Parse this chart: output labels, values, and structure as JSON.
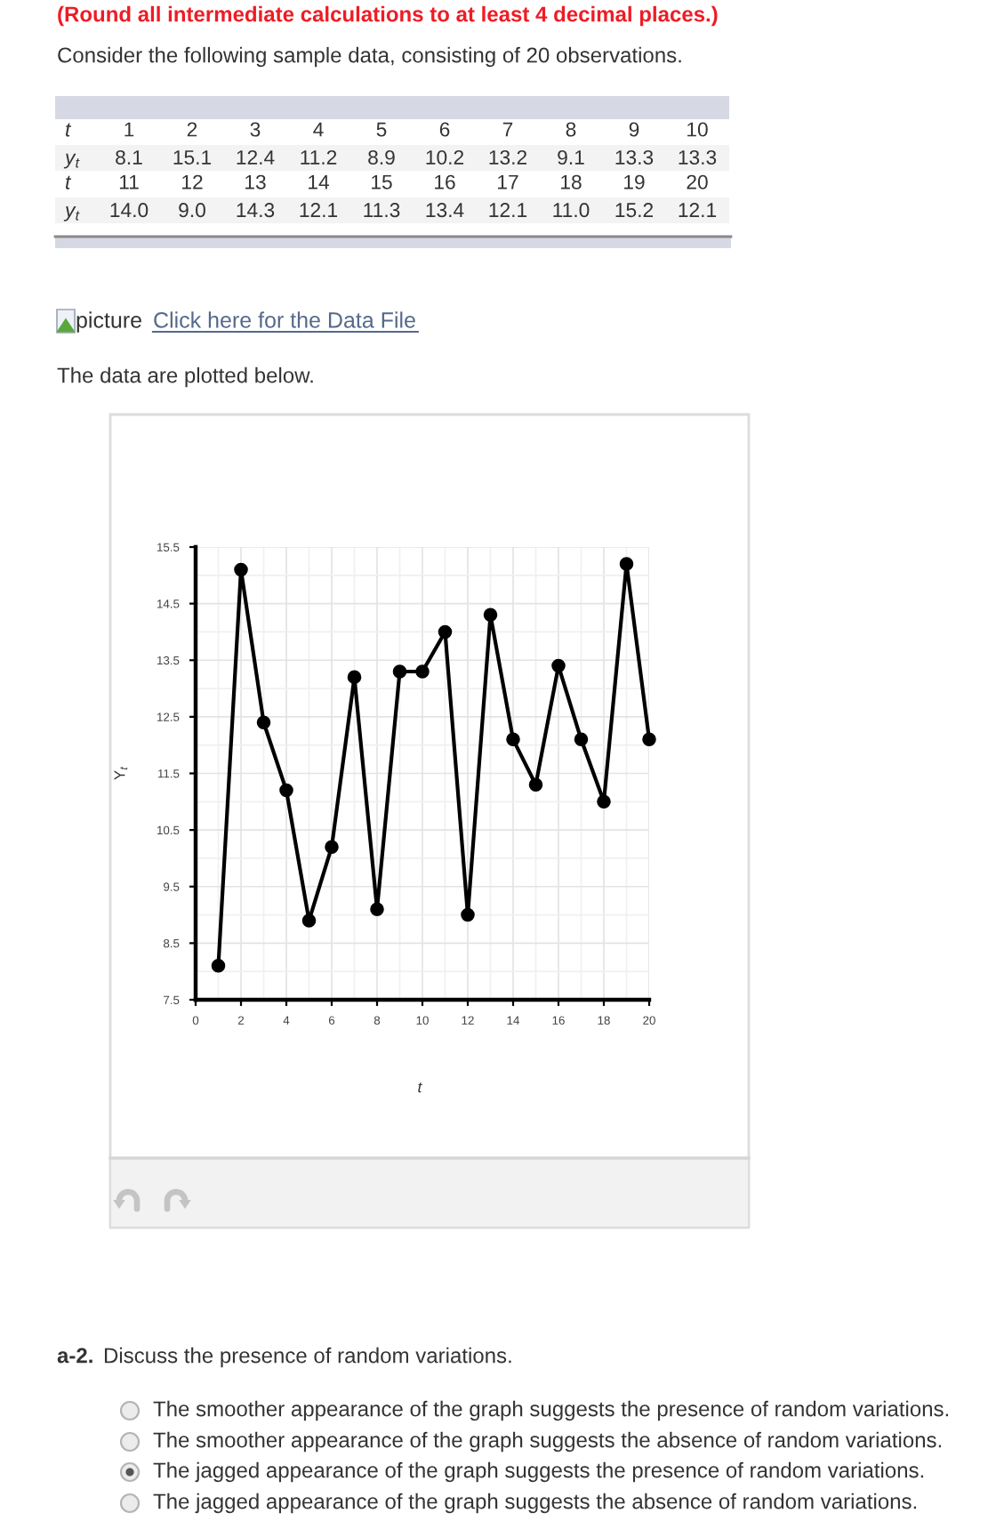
{
  "chart_data": {
    "type": "line",
    "xlabel": "t",
    "ylabel": "Y$_{t}$",
    "x": [
      1,
      2,
      3,
      4,
      5,
      6,
      7,
      8,
      9,
      10,
      11,
      12,
      13,
      14,
      15,
      16,
      17,
      18,
      19,
      20
    ],
    "series": [
      {
        "color": "#000000",
        "values": [
          8.1,
          15.1,
          12.4,
          11.2,
          8.9,
          10.2,
          13.2,
          9.1,
          13.3,
          13.3,
          14.0,
          9.0,
          14.3,
          12.1,
          11.3,
          13.4,
          12.1,
          11.0,
          15.2,
          12.1
        ]
      }
    ],
    "xlim": [
      0,
      20
    ],
    "ylim": [
      7.5,
      15.5
    ],
    "xticks": [
      0,
      2,
      4,
      6,
      8,
      10,
      12,
      14,
      16,
      18,
      20
    ],
    "yticks": [
      7.5,
      8.5,
      9.5,
      10.5,
      11.5,
      12.5,
      13.5,
      14.5,
      15.5
    ],
    "grid": true,
    "marker": "circle",
    "line_style": "solid",
    "annotations": [
      "(Round all intermediate calculations to at least 4 decimal places.)",
      "Consider the following sample data, consisting of 20 observations.",
      "t\ny$_{t}$",
      "1\n8.1",
      "2\n15.1",
      "3\n12.4",
      "4\n11.2",
      "5\n8.9",
      "6\n10.2",
      "7\n13.2",
      "8\n9.1",
      "9\n13.3",
      "10\n13.3",
      "t\ny$_{t}$",
      "11\n14.0",
      "12\n9.0",
      "13\n14.3",
      "14\n12.1",
      "15\n11.3",
      "16\n13.4",
      "17\n12.1",
      "18\n11.0",
      "19\n15.2",
      "20\n12.1",
      "picture",
      "Click here for the Data File",
      "The data are plotted below.",
      "a-2.",
      "Discuss the presence of random variations.",
      "The smoother appearance of the graph suggests the presence of random variations.",
      "The smoother appearance of the graph suggests the absence of random variations.",
      "The jagged appearance of the graph suggests the presence of random variations.",
      "The jagged appearance of the graph suggests the absence of random variations."
    ]
  }
}
